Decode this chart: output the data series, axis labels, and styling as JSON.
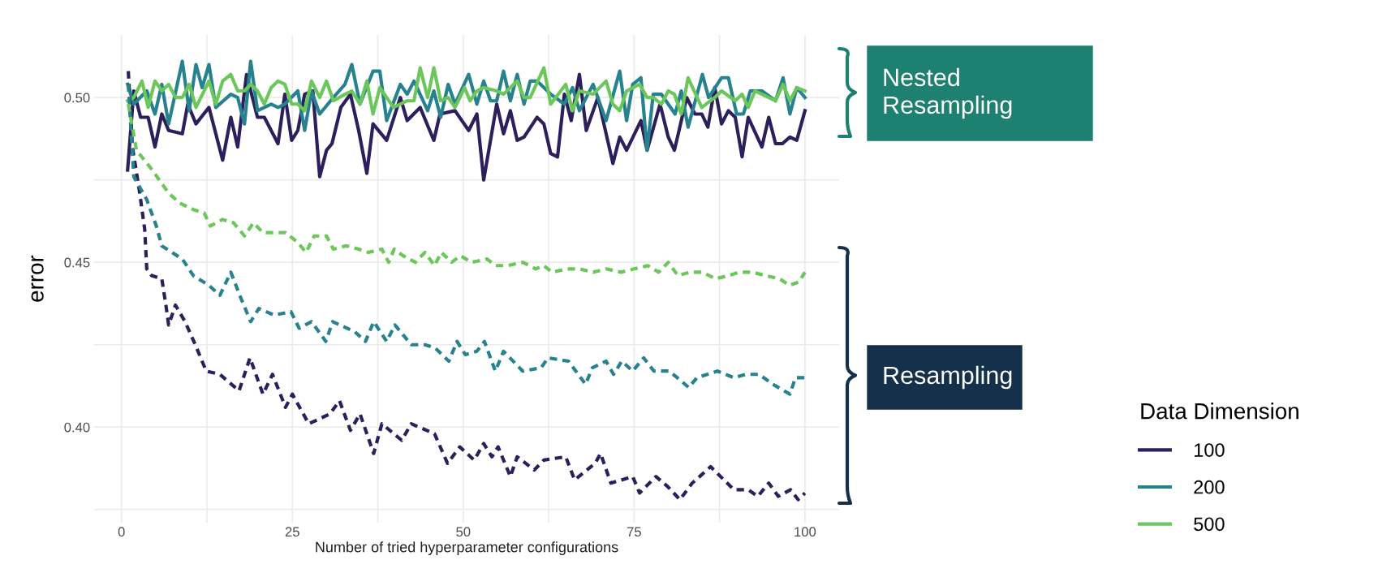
{
  "chart_data": {
    "type": "line",
    "xlabel": "Number of tried hyperparameter configurations",
    "ylabel": "error",
    "legend_title": "Data Dimension",
    "legend": "bottom right",
    "grid": true,
    "xlim": [
      -4,
      105
    ],
    "ylim": [
      0.371,
      0.519
    ],
    "xticks": [
      0,
      {
        "value": 12.5,
        "label": null
      },
      25,
      {
        "value": 37.5,
        "label": null
      },
      50,
      {
        "value": 62.5,
        "label": null
      },
      75,
      {
        "value": 87.5,
        "label": null
      },
      100
    ],
    "yticks": [
      {
        "value": 0.375,
        "label": null
      },
      {
        "value": 0.4,
        "label": "0.40"
      },
      {
        "value": 0.425,
        "label": null
      },
      {
        "value": 0.45,
        "label": "0.45"
      },
      {
        "value": 0.475,
        "label": null
      },
      {
        "value": 0.5,
        "label": "0.50"
      }
    ],
    "annotations": [
      "Nested Resampling",
      "Resampling"
    ],
    "series": [
      {
        "name": "100",
        "color": "#2c1f5b",
        "line_style": "solid",
        "x": [
          0.9,
          1.8,
          2.8,
          3.9,
          4.9,
          5.9,
          6.9,
          8.9,
          9.7,
          10.9,
          12.8,
          14.8,
          16,
          17,
          18.3,
          19.9,
          20.9,
          22.9,
          23.9,
          24.9,
          25.8,
          26.8,
          28,
          29,
          30,
          30.8,
          32.1,
          33.5,
          34.7,
          35.9,
          36.8,
          38.8,
          40.8,
          41.8,
          43.7,
          45.7,
          46.6,
          48.8,
          50.8,
          52,
          53,
          54.9,
          55.9,
          56.9,
          57.9,
          58.9,
          60.8,
          61.8,
          62.8,
          63.8,
          64.8,
          65.8,
          67,
          68,
          69.7,
          71.9,
          72.9,
          73.9,
          76,
          76.9,
          78.8,
          80,
          80.9,
          82.7,
          83.9,
          84.9,
          85.8,
          86.8,
          87.8,
          88.8,
          89.8,
          90.8,
          91.7,
          93.7,
          94.7,
          95.7,
          96.7,
          97.8,
          98.8,
          100
        ],
        "values": [
          0.478,
          0.502,
          0.494,
          0.494,
          0.485,
          0.495,
          0.49,
          0.489,
          0.498,
          0.492,
          0.497,
          0.481,
          0.494,
          0.485,
          0.507,
          0.494,
          0.494,
          0.486,
          0.501,
          0.487,
          0.49,
          0.501,
          0.502,
          0.476,
          0.484,
          0.486,
          0.497,
          0.501,
          0.49,
          0.477,
          0.492,
          0.487,
          0.5,
          0.493,
          0.497,
          0.487,
          0.495,
          0.496,
          0.49,
          0.495,
          0.475,
          0.498,
          0.489,
          0.496,
          0.487,
          0.488,
          0.494,
          0.492,
          0.483,
          0.482,
          0.501,
          0.493,
          0.507,
          0.49,
          0.5,
          0.48,
          0.488,
          0.484,
          0.493,
          0.484,
          0.498,
          0.488,
          0.484,
          0.5,
          0.495,
          0.495,
          0.491,
          0.503,
          0.492,
          0.496,
          0.494,
          0.482,
          0.494,
          0.485,
          0.494,
          0.486,
          0.486,
          0.488,
          0.487,
          0.496
        ]
      },
      {
        "name": "200",
        "color": "#26828e",
        "line_style": "solid",
        "x": [
          0.9,
          1.8,
          3.7,
          4.9,
          5.9,
          6.9,
          8.9,
          9.9,
          10.9,
          11.8,
          12.8,
          13.8,
          16,
          17,
          18,
          18.9,
          19.9,
          21.9,
          22.9,
          23.9,
          25.8,
          26.8,
          27.8,
          29,
          31,
          32.7,
          33.7,
          34.9,
          36.8,
          37.8,
          38.8,
          40.8,
          41.8,
          42.8,
          44.8,
          45.7,
          46.7,
          47.8,
          48.8,
          50.8,
          52,
          53,
          54,
          54.9,
          55.9,
          56.9,
          57.9,
          58.9,
          59.8,
          60.8,
          62.8,
          64.8,
          66,
          67,
          69,
          70.9,
          72.9,
          73.9,
          74.8,
          76,
          76.9,
          77.8,
          79,
          81,
          81.9,
          82.9,
          85,
          85.9,
          87.8,
          88.8,
          90,
          91,
          92,
          93.7,
          95.7,
          96.8,
          97.8,
          98.8,
          100
        ],
        "values": [
          0.504,
          0.498,
          0.502,
          0.495,
          0.504,
          0.492,
          0.511,
          0.496,
          0.51,
          0.503,
          0.51,
          0.497,
          0.501,
          0.5,
          0.492,
          0.511,
          0.496,
          0.498,
          0.497,
          0.498,
          0.502,
          0.49,
          0.502,
          0.495,
          0.5,
          0.504,
          0.51,
          0.498,
          0.508,
          0.508,
          0.493,
          0.504,
          0.501,
          0.505,
          0.496,
          0.502,
          0.494,
          0.504,
          0.498,
          0.507,
          0.498,
          0.505,
          0.499,
          0.499,
          0.508,
          0.499,
          0.507,
          0.498,
          0.505,
          0.505,
          0.501,
          0.498,
          0.503,
          0.496,
          0.504,
          0.493,
          0.508,
          0.493,
          0.504,
          0.506,
          0.484,
          0.501,
          0.501,
          0.495,
          0.502,
          0.491,
          0.507,
          0.5,
          0.506,
          0.506,
          0.495,
          0.495,
          0.502,
          0.502,
          0.499,
          0.506,
          0.495,
          0.503,
          0.5
        ]
      },
      {
        "name": "500",
        "color": "#6cc75a",
        "line_style": "solid",
        "x": [
          0.9,
          1.8,
          3,
          3.9,
          4.9,
          5.9,
          6.9,
          7.9,
          8.9,
          9.9,
          10.9,
          12.8,
          13.8,
          14.8,
          16,
          17,
          18,
          18.9,
          19.9,
          20.9,
          21.9,
          22.9,
          23.9,
          24.9,
          25.8,
          26.8,
          27.8,
          29,
          30,
          31,
          32.7,
          33.7,
          34.9,
          35.9,
          36.8,
          37.8,
          39.8,
          41.8,
          42.8,
          43.7,
          44.8,
          45.7,
          46.7,
          47.8,
          48.8,
          50.2,
          51,
          52,
          53,
          54.9,
          55.9,
          57.9,
          58.9,
          59.8,
          61.8,
          62.8,
          65,
          66,
          67,
          69,
          70.9,
          71.9,
          72.9,
          73.9,
          75.8,
          76.9,
          77.8,
          79,
          80,
          80.9,
          81.9,
          82.9,
          84.9,
          86.8,
          87.8,
          89.8,
          90.8,
          91.7,
          92.7,
          94.7,
          95.7,
          96.8,
          97.8,
          98.8,
          100
        ],
        "values": [
          0.499,
          0.5,
          0.505,
          0.497,
          0.505,
          0.502,
          0.504,
          0.5,
          0.5,
          0.504,
          0.497,
          0.505,
          0.498,
          0.505,
          0.507,
          0.502,
          0.502,
          0.504,
          0.502,
          0.498,
          0.503,
          0.505,
          0.504,
          0.498,
          0.498,
          0.496,
          0.505,
          0.5,
          0.505,
          0.499,
          0.501,
          0.502,
          0.498,
          0.505,
          0.495,
          0.503,
          0.497,
          0.499,
          0.499,
          0.509,
          0.5,
          0.509,
          0.499,
          0.5,
          0.497,
          0.503,
          0.499,
          0.502,
          0.503,
          0.502,
          0.501,
          0.505,
          0.5,
          0.5,
          0.509,
          0.498,
          0.504,
          0.496,
          0.502,
          0.501,
          0.505,
          0.498,
          0.496,
          0.502,
          0.504,
          0.5,
          0.5,
          0.498,
          0.502,
          0.501,
          0.495,
          0.506,
          0.497,
          0.5,
          0.502,
          0.499,
          0.501,
          0.497,
          0.502,
          0.5,
          0.499,
          0.504,
          0.499,
          0.503,
          0.502
        ]
      },
      {
        "color": "#2c1f5b",
        "line_style": "dashed",
        "x": [
          1,
          1.6,
          2.6,
          3.4,
          3.7,
          4.4,
          5.9,
          6.5,
          6.9,
          7.9,
          9.3,
          10.8,
          12.4,
          14.4,
          17.2,
          18.8,
          20.7,
          22.1,
          24,
          25,
          27.4,
          30.5,
          31.9,
          33.5,
          34.9,
          36.9,
          38.1,
          41,
          42.4,
          45.8,
          47.7,
          49.5,
          51.6,
          53,
          54.2,
          55.1,
          56.9,
          57.9,
          60.4,
          61.8,
          65,
          66.3,
          69.3,
          70.1,
          71.6,
          74.8,
          75.8,
          78.2,
          79.9,
          81.7,
          83.5,
          86.2,
          89.6,
          91.7,
          93.1,
          94.7,
          96.1,
          97.9,
          99,
          100
        ],
        "values": [
          0.508,
          0.485,
          0.472,
          0.46,
          0.448,
          0.446,
          0.445,
          0.437,
          0.431,
          0.437,
          0.432,
          0.425,
          0.417,
          0.416,
          0.411,
          0.421,
          0.41,
          0.416,
          0.406,
          0.41,
          0.401,
          0.404,
          0.408,
          0.399,
          0.404,
          0.392,
          0.401,
          0.396,
          0.401,
          0.398,
          0.389,
          0.394,
          0.39,
          0.395,
          0.391,
          0.394,
          0.385,
          0.391,
          0.387,
          0.39,
          0.391,
          0.384,
          0.389,
          0.392,
          0.383,
          0.385,
          0.38,
          0.385,
          0.382,
          0.378,
          0.383,
          0.388,
          0.381,
          0.381,
          0.379,
          0.383,
          0.379,
          0.381,
          0.378,
          0.38
        ]
      },
      {
        "color": "#26828e",
        "line_style": "dashed",
        "x": [
          1,
          1.8,
          3.7,
          5.1,
          5.9,
          8.9,
          10.5,
          12.8,
          14.4,
          16,
          17.5,
          18.9,
          20.1,
          22.3,
          24.8,
          26,
          27.8,
          29.9,
          30.9,
          34.1,
          35.7,
          36.9,
          38.8,
          40,
          42.4,
          44.4,
          45.9,
          47.9,
          49.1,
          50.3,
          52,
          53.1,
          54.7,
          55.9,
          58.7,
          61.4,
          62.4,
          65.4,
          67.9,
          68.9,
          70.9,
          72,
          73.2,
          74.8,
          76.4,
          77.9,
          80.1,
          81.9,
          83,
          84.2,
          87.2,
          89.6,
          91.3,
          93.3,
          95.3,
          97.8,
          98.6,
          100
        ],
        "values": [
          0.504,
          0.476,
          0.469,
          0.461,
          0.455,
          0.451,
          0.446,
          0.443,
          0.44,
          0.447,
          0.439,
          0.432,
          0.436,
          0.434,
          0.435,
          0.43,
          0.432,
          0.426,
          0.432,
          0.429,
          0.426,
          0.432,
          0.426,
          0.431,
          0.425,
          0.425,
          0.424,
          0.42,
          0.426,
          0.422,
          0.423,
          0.426,
          0.417,
          0.423,
          0.417,
          0.418,
          0.421,
          0.42,
          0.413,
          0.418,
          0.42,
          0.416,
          0.42,
          0.417,
          0.421,
          0.417,
          0.417,
          0.414,
          0.412,
          0.415,
          0.417,
          0.415,
          0.416,
          0.416,
          0.413,
          0.41,
          0.415,
          0.415
        ]
      },
      {
        "color": "#6cc75a",
        "line_style": "dashed",
        "x": [
          1,
          2.2,
          4.5,
          6.9,
          8.5,
          10.5,
          12.1,
          13,
          14.8,
          16.4,
          18,
          19.3,
          20.7,
          21.9,
          24,
          25.8,
          27,
          28.2,
          30,
          31,
          32.9,
          34.7,
          36.1,
          38.1,
          39.1,
          39.9,
          41.2,
          43,
          44.4,
          45.8,
          46.8,
          48.3,
          49.6,
          51.2,
          53.5,
          54.7,
          56.5,
          58.7,
          60.6,
          61.8,
          63,
          65.2,
          67,
          69,
          70.9,
          73.1,
          75,
          77,
          78.6,
          80,
          81.4,
          83.2,
          85,
          86.9,
          88.9,
          90.3,
          92.3,
          94.2,
          96.3,
          97.7,
          99.1,
          100
        ],
        "values": [
          0.498,
          0.484,
          0.478,
          0.471,
          0.468,
          0.466,
          0.465,
          0.461,
          0.463,
          0.462,
          0.458,
          0.462,
          0.459,
          0.459,
          0.459,
          0.456,
          0.453,
          0.458,
          0.458,
          0.454,
          0.455,
          0.454,
          0.453,
          0.454,
          0.45,
          0.454,
          0.452,
          0.45,
          0.453,
          0.449,
          0.453,
          0.45,
          0.452,
          0.45,
          0.451,
          0.449,
          0.449,
          0.45,
          0.448,
          0.449,
          0.447,
          0.448,
          0.448,
          0.447,
          0.448,
          0.447,
          0.448,
          0.449,
          0.447,
          0.45,
          0.446,
          0.447,
          0.447,
          0.445,
          0.446,
          0.447,
          0.447,
          0.446,
          0.445,
          0.443,
          0.444,
          0.447
        ]
      }
    ]
  }
}
